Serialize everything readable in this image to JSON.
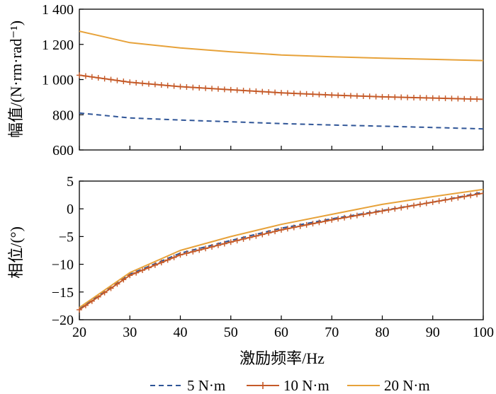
{
  "chart_data": [
    {
      "type": "line",
      "panel": "amplitude",
      "ylabel": "幅值/(N·rm·rad⁻¹)",
      "xlim": [
        20,
        100
      ],
      "ylim": [
        600,
        1400
      ],
      "xticks": [
        20,
        30,
        40,
        50,
        60,
        70,
        80,
        90,
        100
      ],
      "yticks": [
        600,
        800,
        1000,
        1200,
        1400
      ],
      "ytick_labels": [
        "600",
        "800",
        "1 000",
        "1 200",
        "1 400"
      ],
      "grid": false,
      "x": [
        20,
        30,
        40,
        50,
        60,
        70,
        80,
        90,
        100
      ],
      "series": [
        {
          "name": "5 N·m",
          "color": "#2f5597",
          "values": [
            810,
            782,
            770,
            760,
            750,
            742,
            735,
            728,
            720
          ]
        },
        {
          "name": "10 N·m",
          "color": "#c55a28",
          "values": [
            1025,
            985,
            960,
            942,
            925,
            912,
            902,
            895,
            888
          ]
        },
        {
          "name": "20 N·m",
          "color": "#e7a23a",
          "values": [
            1275,
            1210,
            1180,
            1158,
            1140,
            1130,
            1122,
            1115,
            1108
          ]
        }
      ]
    },
    {
      "type": "line",
      "panel": "phase",
      "xlabel": "激励频率/Hz",
      "ylabel": "相位/(°)",
      "xlim": [
        20,
        100
      ],
      "ylim": [
        -20,
        5
      ],
      "xticks": [
        20,
        30,
        40,
        50,
        60,
        70,
        80,
        90,
        100
      ],
      "yticks": [
        -20,
        -15,
        -10,
        -5,
        0,
        5
      ],
      "ytick_labels": [
        "−20",
        "−15",
        "−10",
        "−5",
        "0",
        "5"
      ],
      "grid": false,
      "x": [
        20,
        30,
        40,
        50,
        60,
        70,
        80,
        90,
        100
      ],
      "series": [
        {
          "name": "5 N·m",
          "color": "#2f5597",
          "values": [
            -18.0,
            -11.8,
            -8.0,
            -5.7,
            -3.5,
            -1.8,
            -0.3,
            1.2,
            3.0
          ]
        },
        {
          "name": "10 N·m",
          "color": "#c55a28",
          "values": [
            -18.2,
            -12.0,
            -8.3,
            -6.0,
            -3.8,
            -2.0,
            -0.4,
            1.2,
            2.8
          ]
        },
        {
          "name": "20 N·m",
          "color": "#e7a23a",
          "values": [
            -17.8,
            -11.5,
            -7.5,
            -5.0,
            -2.8,
            -1.0,
            0.8,
            2.2,
            3.5
          ]
        }
      ],
      "legend": {
        "position": "bottom",
        "entries": [
          "5 N·m",
          "10 N·m",
          "20 N·m"
        ]
      }
    }
  ]
}
